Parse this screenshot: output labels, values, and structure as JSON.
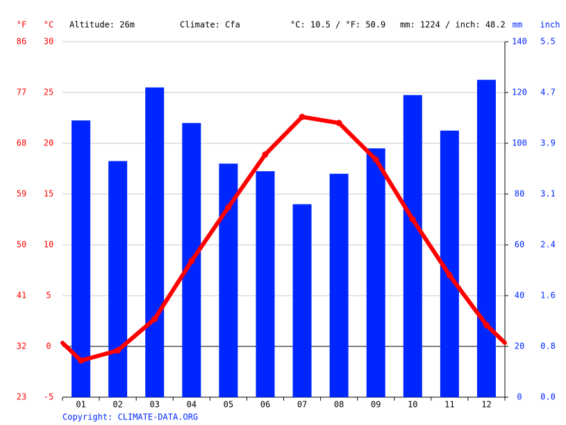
{
  "chart_data": {
    "type": "combo",
    "header": {
      "unit_f": "°F",
      "unit_c": "°C",
      "altitude": "Altitude: 26m",
      "climate": "Climate: Cfa",
      "avg_temp": "°C: 10.5 / °F: 50.9",
      "total_precip": "mm: 1224 / inch: 48.2",
      "unit_mm": "mm",
      "unit_inch": "inch"
    },
    "categories": [
      "01",
      "02",
      "03",
      "04",
      "05",
      "06",
      "07",
      "08",
      "09",
      "10",
      "11",
      "12"
    ],
    "series": [
      {
        "name": "Precipitation",
        "type": "bar",
        "axis": "y2",
        "color": "#0026ff",
        "values": [
          109,
          93,
          122,
          108,
          92,
          89,
          76,
          88,
          98,
          119,
          105,
          125
        ]
      },
      {
        "name": "Temperature",
        "type": "line",
        "axis": "y",
        "color": "#ff0000",
        "values": [
          -1.4,
          -0.4,
          2.7,
          8.4,
          13.7,
          18.9,
          22.6,
          22.0,
          18.4,
          12.5,
          7.0,
          2.1
        ]
      }
    ],
    "ylim": [
      -5,
      30
    ],
    "yticks": [
      -5,
      0,
      5,
      10,
      15,
      20,
      25,
      30
    ],
    "yticks_f": [
      {
        "value": -5,
        "label": "23"
      },
      {
        "value": 0,
        "label": "32"
      },
      {
        "value": 5,
        "label": "41"
      },
      {
        "value": 10,
        "label": "50"
      },
      {
        "value": 15,
        "label": "59"
      },
      {
        "value": 20,
        "label": "68"
      },
      {
        "value": 25,
        "label": "77"
      },
      {
        "value": 30,
        "label": "86"
      }
    ],
    "y2lim": [
      0,
      140
    ],
    "y2ticks": [
      0,
      20,
      40,
      60,
      80,
      100,
      120,
      140
    ],
    "y2ticks_inch": [
      {
        "value": 0,
        "label": "0.0"
      },
      {
        "value": 20,
        "label": "0.8"
      },
      {
        "value": 40,
        "label": "1.6"
      },
      {
        "value": 60,
        "label": "2.4"
      },
      {
        "value": 80,
        "label": "3.1"
      },
      {
        "value": 100,
        "label": "3.9"
      },
      {
        "value": 120,
        "label": "4.7"
      },
      {
        "value": 140,
        "label": "5.5"
      }
    ],
    "grid": true,
    "copyright": "Copyright: CLIMATE-DATA.ORG"
  }
}
